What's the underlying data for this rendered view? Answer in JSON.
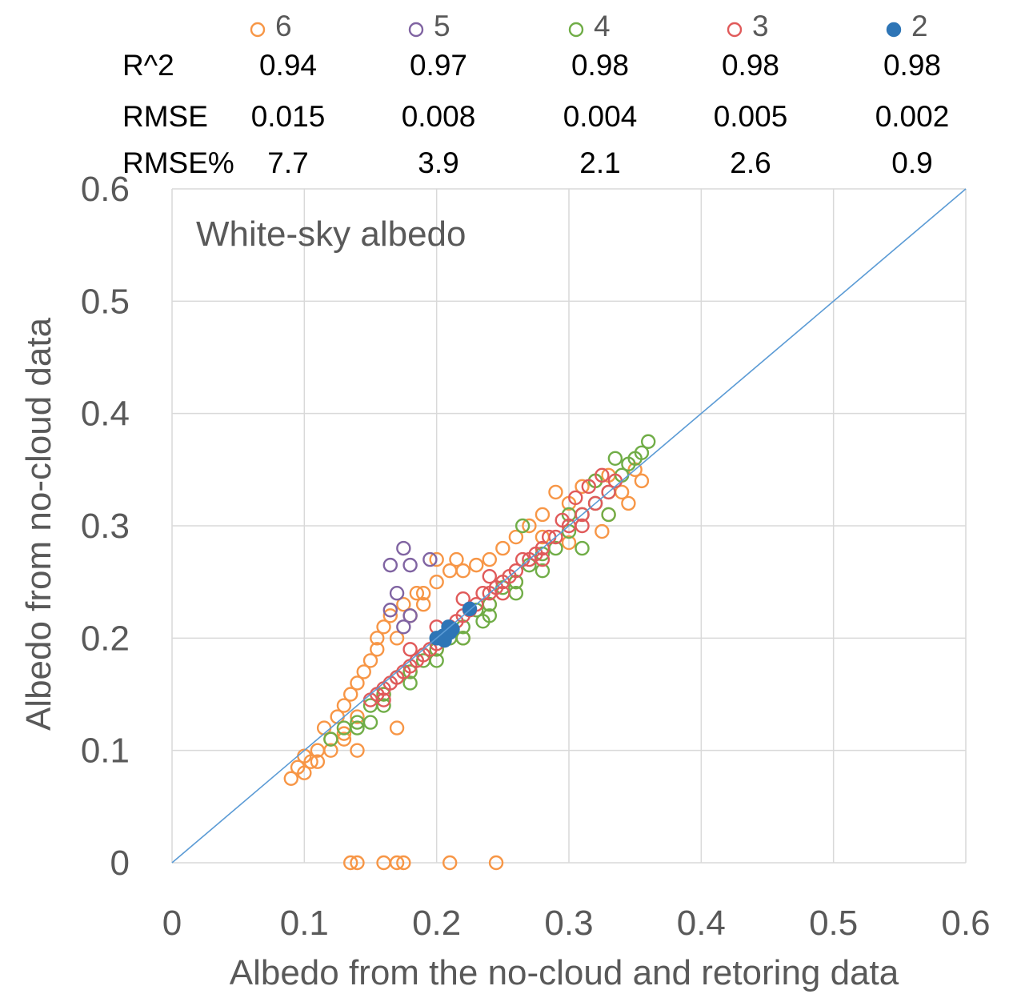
{
  "chart_data": {
    "type": "scatter",
    "title": "",
    "panel_label": "White-sky albedo",
    "xlabel": "Albedo from the no-cloud and retoring data",
    "ylabel": "Albedo from no-cloud data",
    "xlim": [
      0,
      0.6
    ],
    "ylim": [
      0,
      0.6
    ],
    "x_ticks": [
      "0",
      "0.1",
      "0.2",
      "0.3",
      "0.4",
      "0.5",
      "0.6"
    ],
    "y_ticks": [
      "0",
      "0.1",
      "0.2",
      "0.3",
      "0.4",
      "0.5",
      "0.6"
    ],
    "grid": true,
    "legend_position": "top",
    "reference_line": {
      "from": [
        0,
        0
      ],
      "to": [
        0.6,
        0.6
      ],
      "color": "#5b9bd5"
    },
    "stats": {
      "row_labels": [
        "R^2",
        "RMSE",
        "RMSE%"
      ],
      "columns": [
        {
          "series": "6",
          "values": [
            "0.94",
            "0.015",
            "7.7"
          ]
        },
        {
          "series": "5",
          "values": [
            "0.97",
            "0.008",
            "3.9"
          ]
        },
        {
          "series": "4",
          "values": [
            "0.98",
            "0.004",
            "2.1"
          ]
        },
        {
          "series": "3",
          "values": [
            "0.98",
            "0.005",
            "2.6"
          ]
        },
        {
          "series": "2",
          "values": [
            "0.98",
            "0.002",
            "0.9"
          ]
        }
      ]
    },
    "series": [
      {
        "name": "6",
        "color": "#f79646",
        "marker": "open-circle",
        "points": [
          [
            0.09,
            0.075
          ],
          [
            0.095,
            0.085
          ],
          [
            0.1,
            0.095
          ],
          [
            0.105,
            0.09
          ],
          [
            0.11,
            0.1
          ],
          [
            0.115,
            0.12
          ],
          [
            0.12,
            0.11
          ],
          [
            0.125,
            0.13
          ],
          [
            0.13,
            0.14
          ],
          [
            0.135,
            0.15
          ],
          [
            0.14,
            0.16
          ],
          [
            0.145,
            0.17
          ],
          [
            0.15,
            0.18
          ],
          [
            0.155,
            0.2
          ],
          [
            0.16,
            0.21
          ],
          [
            0.165,
            0.22
          ],
          [
            0.17,
            0.2
          ],
          [
            0.175,
            0.23
          ],
          [
            0.18,
            0.22
          ],
          [
            0.185,
            0.24
          ],
          [
            0.19,
            0.24
          ],
          [
            0.2,
            0.25
          ],
          [
            0.21,
            0.26
          ],
          [
            0.215,
            0.27
          ],
          [
            0.22,
            0.26
          ],
          [
            0.23,
            0.265
          ],
          [
            0.24,
            0.27
          ],
          [
            0.25,
            0.28
          ],
          [
            0.26,
            0.29
          ],
          [
            0.27,
            0.3
          ],
          [
            0.28,
            0.31
          ],
          [
            0.29,
            0.33
          ],
          [
            0.3,
            0.32
          ],
          [
            0.31,
            0.335
          ],
          [
            0.32,
            0.34
          ],
          [
            0.33,
            0.345
          ],
          [
            0.34,
            0.33
          ],
          [
            0.345,
            0.32
          ],
          [
            0.35,
            0.35
          ],
          [
            0.355,
            0.34
          ],
          [
            0.33,
            0.31
          ],
          [
            0.3,
            0.285
          ],
          [
            0.28,
            0.29
          ],
          [
            0.26,
            0.25
          ],
          [
            0.24,
            0.23
          ],
          [
            0.22,
            0.2
          ],
          [
            0.2,
            0.19
          ],
          [
            0.18,
            0.17
          ],
          [
            0.16,
            0.15
          ],
          [
            0.14,
            0.13
          ],
          [
            0.13,
            0.115
          ],
          [
            0.12,
            0.1
          ],
          [
            0.11,
            0.09
          ],
          [
            0.1,
            0.08
          ],
          [
            0.17,
            0.12
          ],
          [
            0.14,
            0.1
          ],
          [
            0.155,
            0.19
          ],
          [
            0.13,
            0.11
          ],
          [
            0.325,
            0.295
          ],
          [
            0.2,
            0.27
          ],
          [
            0.19,
            0.23
          ],
          [
            0.135,
            0
          ],
          [
            0.14,
            0
          ],
          [
            0.16,
            0
          ],
          [
            0.17,
            0
          ],
          [
            0.175,
            0
          ],
          [
            0.21,
            0
          ],
          [
            0.245,
            0
          ]
        ]
      },
      {
        "name": "5",
        "color": "#8064a2",
        "marker": "open-circle",
        "points": [
          [
            0.165,
            0.265
          ],
          [
            0.175,
            0.28
          ],
          [
            0.18,
            0.265
          ],
          [
            0.195,
            0.27
          ],
          [
            0.17,
            0.24
          ],
          [
            0.18,
            0.22
          ],
          [
            0.175,
            0.21
          ],
          [
            0.165,
            0.225
          ]
        ]
      },
      {
        "name": "4",
        "color": "#70ad47",
        "marker": "open-circle",
        "points": [
          [
            0.12,
            0.11
          ],
          [
            0.13,
            0.12
          ],
          [
            0.14,
            0.125
          ],
          [
            0.15,
            0.14
          ],
          [
            0.16,
            0.15
          ],
          [
            0.17,
            0.165
          ],
          [
            0.18,
            0.17
          ],
          [
            0.19,
            0.18
          ],
          [
            0.2,
            0.19
          ],
          [
            0.21,
            0.2
          ],
          [
            0.22,
            0.21
          ],
          [
            0.23,
            0.225
          ],
          [
            0.24,
            0.23
          ],
          [
            0.25,
            0.245
          ],
          [
            0.26,
            0.25
          ],
          [
            0.27,
            0.265
          ],
          [
            0.28,
            0.275
          ],
          [
            0.29,
            0.28
          ],
          [
            0.3,
            0.295
          ],
          [
            0.31,
            0.31
          ],
          [
            0.32,
            0.32
          ],
          [
            0.33,
            0.33
          ],
          [
            0.34,
            0.345
          ],
          [
            0.345,
            0.355
          ],
          [
            0.35,
            0.36
          ],
          [
            0.355,
            0.365
          ],
          [
            0.36,
            0.375
          ],
          [
            0.335,
            0.36
          ],
          [
            0.32,
            0.34
          ],
          [
            0.3,
            0.31
          ],
          [
            0.28,
            0.26
          ],
          [
            0.26,
            0.24
          ],
          [
            0.24,
            0.22
          ],
          [
            0.22,
            0.2
          ],
          [
            0.2,
            0.18
          ],
          [
            0.18,
            0.16
          ],
          [
            0.16,
            0.14
          ],
          [
            0.14,
            0.12
          ],
          [
            0.235,
            0.215
          ],
          [
            0.265,
            0.3
          ],
          [
            0.31,
            0.28
          ],
          [
            0.33,
            0.31
          ],
          [
            0.15,
            0.125
          ]
        ]
      },
      {
        "name": "3",
        "color": "#e05a5a",
        "marker": "open-circle",
        "points": [
          [
            0.15,
            0.145
          ],
          [
            0.16,
            0.155
          ],
          [
            0.17,
            0.165
          ],
          [
            0.18,
            0.175
          ],
          [
            0.19,
            0.185
          ],
          [
            0.2,
            0.195
          ],
          [
            0.21,
            0.21
          ],
          [
            0.22,
            0.22
          ],
          [
            0.23,
            0.23
          ],
          [
            0.24,
            0.24
          ],
          [
            0.25,
            0.25
          ],
          [
            0.26,
            0.26
          ],
          [
            0.27,
            0.27
          ],
          [
            0.28,
            0.28
          ],
          [
            0.29,
            0.29
          ],
          [
            0.3,
            0.3
          ],
          [
            0.31,
            0.31
          ],
          [
            0.32,
            0.32
          ],
          [
            0.33,
            0.33
          ],
          [
            0.335,
            0.34
          ],
          [
            0.325,
            0.345
          ],
          [
            0.315,
            0.335
          ],
          [
            0.305,
            0.325
          ],
          [
            0.295,
            0.305
          ],
          [
            0.285,
            0.29
          ],
          [
            0.275,
            0.275
          ],
          [
            0.265,
            0.27
          ],
          [
            0.255,
            0.255
          ],
          [
            0.245,
            0.245
          ],
          [
            0.235,
            0.24
          ],
          [
            0.225,
            0.225
          ],
          [
            0.215,
            0.215
          ],
          [
            0.205,
            0.2
          ],
          [
            0.195,
            0.19
          ],
          [
            0.185,
            0.18
          ],
          [
            0.175,
            0.17
          ],
          [
            0.165,
            0.16
          ],
          [
            0.155,
            0.15
          ],
          [
            0.2,
            0.21
          ],
          [
            0.22,
            0.235
          ],
          [
            0.25,
            0.24
          ],
          [
            0.28,
            0.27
          ],
          [
            0.31,
            0.3
          ],
          [
            0.18,
            0.19
          ],
          [
            0.16,
            0.145
          ],
          [
            0.24,
            0.255
          ]
        ]
      },
      {
        "name": "2",
        "color": "#2e75b6",
        "marker": "filled-circle",
        "points": [
          [
            0.2,
            0.2
          ],
          [
            0.203,
            0.2
          ],
          [
            0.205,
            0.202
          ],
          [
            0.207,
            0.203
          ],
          [
            0.21,
            0.205
          ],
          [
            0.212,
            0.208
          ],
          [
            0.206,
            0.198
          ],
          [
            0.209,
            0.21
          ],
          [
            0.225,
            0.226
          ]
        ]
      }
    ]
  }
}
